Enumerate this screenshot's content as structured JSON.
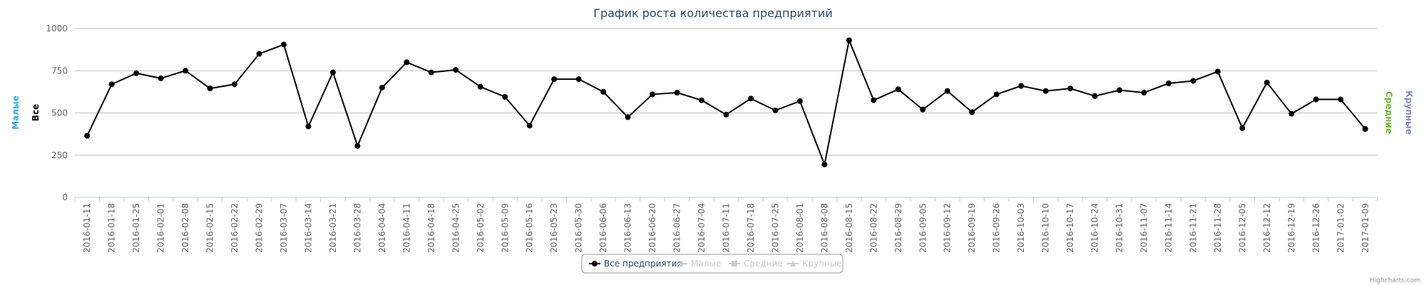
{
  "chart_data": {
    "type": "line",
    "title": "График роста количества предприятий",
    "categories": [
      "2016-01-11",
      "2016-01-18",
      "2016-01-25",
      "2016-02-01",
      "2016-02-08",
      "2016-02-15",
      "2016-02-22",
      "2016-02-29",
      "2016-03-07",
      "2016-03-14",
      "2016-03-21",
      "2016-03-28",
      "2016-04-04",
      "2016-04-11",
      "2016-04-18",
      "2016-04-25",
      "2016-05-02",
      "2016-05-09",
      "2016-05-16",
      "2016-05-23",
      "2016-05-30",
      "2016-06-06",
      "2016-06-13",
      "2016-06-20",
      "2016-06-27",
      "2016-07-04",
      "2016-07-11",
      "2016-07-18",
      "2016-07-25",
      "2016-08-01",
      "2016-08-08",
      "2016-08-15",
      "2016-08-22",
      "2016-08-29",
      "2016-09-05",
      "2016-09-12",
      "2016-09-19",
      "2016-09-26",
      "2016-10-03",
      "2016-10-10",
      "2016-10-17",
      "2016-10-24",
      "2016-10-31",
      "2016-11-07",
      "2016-11-14",
      "2016-11-21",
      "2016-11-28",
      "2016-12-05",
      "2016-12-12",
      "2016-12-19",
      "2016-12-26",
      "2017-01-02",
      "2017-01-09"
    ],
    "series": [
      {
        "name": "Все предприятия",
        "color": "#000000",
        "symbol": "circle",
        "visible": true,
        "values": [
          365,
          670,
          735,
          705,
          750,
          645,
          670,
          850,
          905,
          420,
          740,
          305,
          650,
          800,
          740,
          755,
          655,
          595,
          425,
          700,
          700,
          625,
          475,
          610,
          620,
          575,
          490,
          585,
          515,
          570,
          195,
          930,
          575,
          640,
          520,
          630,
          505,
          610,
          660,
          630,
          645,
          600,
          635,
          620,
          675,
          690,
          745,
          410,
          680,
          495,
          580,
          580,
          405
        ]
      },
      {
        "name": "Малые",
        "color": "#cccccc",
        "symbol": "diamond",
        "visible": false
      },
      {
        "name": "Средние",
        "color": "#cccccc",
        "symbol": "square",
        "visible": false
      },
      {
        "name": "Крупные",
        "color": "#cccccc",
        "symbol": "triangle",
        "visible": false
      }
    ],
    "axis_titles": [
      {
        "text": "Малые",
        "color": "#2eaadc",
        "side": "left"
      },
      {
        "text": "Все",
        "color": "#000000",
        "side": "left"
      },
      {
        "text": "Средние",
        "color": "#66bb22",
        "side": "right"
      },
      {
        "text": "Крупные",
        "color": "#7f86d6",
        "side": "right"
      }
    ],
    "ylim": [
      0,
      1000
    ],
    "yticks": [
      0,
      250,
      500,
      750,
      1000
    ],
    "grid": true,
    "credits": "Highcharts.com"
  }
}
